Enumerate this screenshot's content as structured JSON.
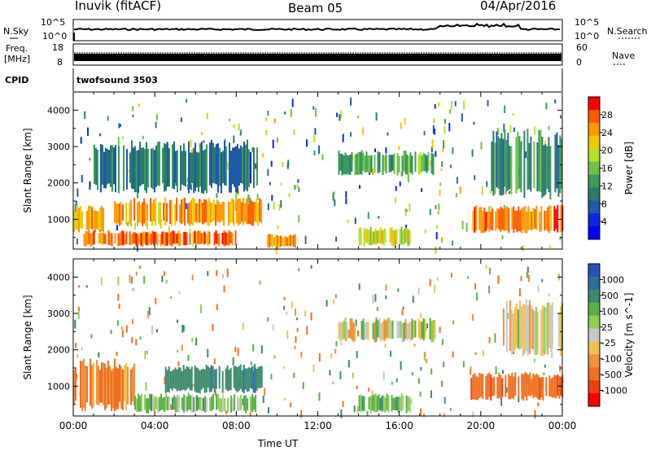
{
  "header": {
    "station": "Inuvik (fitACF)",
    "beam": "Beam 05",
    "date": "04/Apr/2016"
  },
  "strips": {
    "nsky_label": "N.Sky",
    "nsearch_label": "N.Search",
    "count_ticks": [
      "10^5",
      "10^0"
    ],
    "count_ticks_right": [
      "10^5",
      "10^0"
    ],
    "freq_label_1": "Freq.",
    "freq_label_2": "[MHz]",
    "freq_ticks": [
      "18",
      "8"
    ],
    "nave_label": "Nave",
    "nave_ticks": [
      "60",
      "0"
    ],
    "cpid_label": "CPID",
    "cpid_value": "twofsound 3503"
  },
  "chart_data": [
    {
      "type": "heatmap",
      "title": "",
      "xlabel": "",
      "ylabel": "Slant Range [km]",
      "xlim": [
        0,
        24
      ],
      "ylim": [
        180,
        4500
      ],
      "yticks": [
        "4000",
        "3000",
        "2000",
        "1000"
      ],
      "colorbar": {
        "label": "Power [dB]",
        "ticks": [
          "28",
          "24",
          "20",
          "16",
          "12",
          "8",
          "4"
        ],
        "colors": [
          "#ff0000",
          "#ff5a00",
          "#ff9800",
          "#f0c800",
          "#b8e02c",
          "#6cc24a",
          "#3a9a5c",
          "#2a7a6e",
          "#1e5aa8",
          "#0a28e0",
          "#0000ff"
        ]
      },
      "regions": [
        {
          "t": [
            0.0,
            1.5
          ],
          "r": [
            600,
            1400
          ],
          "level": 22
        },
        {
          "t": [
            2.0,
            9.2
          ],
          "r": [
            800,
            1600
          ],
          "level": 24
        },
        {
          "t": [
            0.5,
            8.0
          ],
          "r": [
            250,
            700
          ],
          "level": 26
        },
        {
          "t": [
            1.0,
            9.0
          ],
          "r": [
            1700,
            3200
          ],
          "level": 10
        },
        {
          "t": [
            9.5,
            11.0
          ],
          "r": [
            200,
            600
          ],
          "level": 24
        },
        {
          "t": [
            13.0,
            17.8
          ],
          "r": [
            2200,
            2900
          ],
          "level": 14
        },
        {
          "t": [
            14.0,
            16.5
          ],
          "r": [
            250,
            800
          ],
          "level": 20
        },
        {
          "t": [
            19.5,
            24.0
          ],
          "r": [
            600,
            1400
          ],
          "level": 26
        },
        {
          "t": [
            20.5,
            24.0
          ],
          "r": [
            1500,
            3500
          ],
          "level": 12
        }
      ]
    },
    {
      "type": "heatmap",
      "title": "",
      "xlabel": "Time UT",
      "ylabel": "Slant Range [km]",
      "xlim": [
        0,
        24
      ],
      "ylim": [
        180,
        4500
      ],
      "xticks": [
        "00:00",
        "04:00",
        "08:00",
        "12:00",
        "16:00",
        "20:00",
        "00:00"
      ],
      "yticks": [
        "4000",
        "3000",
        "2000",
        "1000"
      ],
      "colorbar": {
        "label": "Velocity [m s^-1]",
        "ticks": [
          "1000",
          "500",
          "100",
          "25",
          "-25",
          "-100",
          "-500",
          "-1000"
        ],
        "colors": [
          "#2a50b8",
          "#2c6e9e",
          "#3a8a6a",
          "#58b048",
          "#90d050",
          "#c8c8c8",
          "#f0c050",
          "#f09040",
          "#f07020",
          "#f04010",
          "#ff0000"
        ]
      },
      "regions": [
        {
          "t": [
            0.0,
            3.0
          ],
          "r": [
            300,
            1800
          ],
          "level": -150
        },
        {
          "t": [
            4.5,
            9.3
          ],
          "r": [
            800,
            1600
          ],
          "level": 300
        },
        {
          "t": [
            3.0,
            9.0
          ],
          "r": [
            250,
            800
          ],
          "level": 80
        },
        {
          "t": [
            13.0,
            17.8
          ],
          "r": [
            2200,
            2900
          ],
          "level": 0
        },
        {
          "t": [
            14.0,
            16.5
          ],
          "r": [
            250,
            800
          ],
          "level": 120
        },
        {
          "t": [
            19.5,
            24.0
          ],
          "r": [
            600,
            1400
          ],
          "level": -300
        },
        {
          "t": [
            21.0,
            24.0
          ],
          "r": [
            1800,
            3400
          ],
          "level": -10
        }
      ]
    }
  ]
}
